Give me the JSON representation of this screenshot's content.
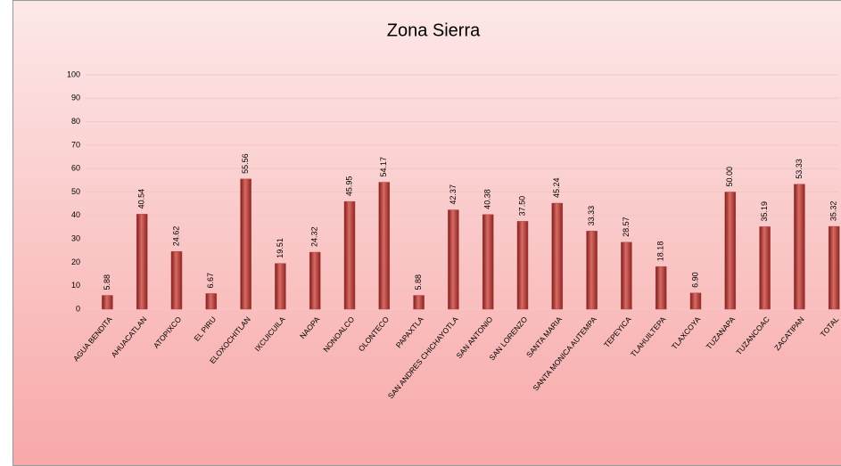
{
  "chart_data": {
    "type": "bar",
    "title": "Zona Sierra",
    "categories": [
      "AGUA BENDITA",
      "AHUACATLAN",
      "ATOPIXCO",
      "EL PIRU",
      "ELOXOCHITLAN",
      "IXCUICUILA",
      "NAOPA",
      "NONOALCO",
      "OLONTECO",
      "PAPAXTLA",
      "SAN ANDRES CHICHAYOTLA",
      "SAN ANTONIO",
      "SAN LORENZO",
      "SANTA MARIA",
      "SANTA MONICA AUTEMPA",
      "TEPEYICA",
      "TLAHUILTEPA",
      "TLAXCOYA",
      "TUZANAPA",
      "TUZANCOAC",
      "ZACATIPAN",
      "TOTAL"
    ],
    "values": [
      5.88,
      40.54,
      24.62,
      6.67,
      55.56,
      19.51,
      24.32,
      45.95,
      54.17,
      5.88,
      42.37,
      40.38,
      37.5,
      45.24,
      33.33,
      28.57,
      18.18,
      6.9,
      50,
      35.19,
      53.33,
      35.32
    ],
    "value_labels": [
      "5.88",
      "40.54",
      "24.62",
      "6.67",
      "55.56",
      "19.51",
      "24.32",
      "45.95",
      "54.17",
      "5.88",
      "42.37",
      "40.38",
      "37.50",
      "45.24",
      "33.33",
      "28.57",
      "18.18",
      "6.90",
      "50.00",
      "35.19",
      "53.33",
      "35.32"
    ],
    "color": "#b8403c",
    "ylim": [
      0,
      100
    ],
    "yticks": [
      0,
      10,
      20,
      30,
      40,
      50,
      60,
      70,
      80,
      90,
      100
    ],
    "grid": true
  }
}
